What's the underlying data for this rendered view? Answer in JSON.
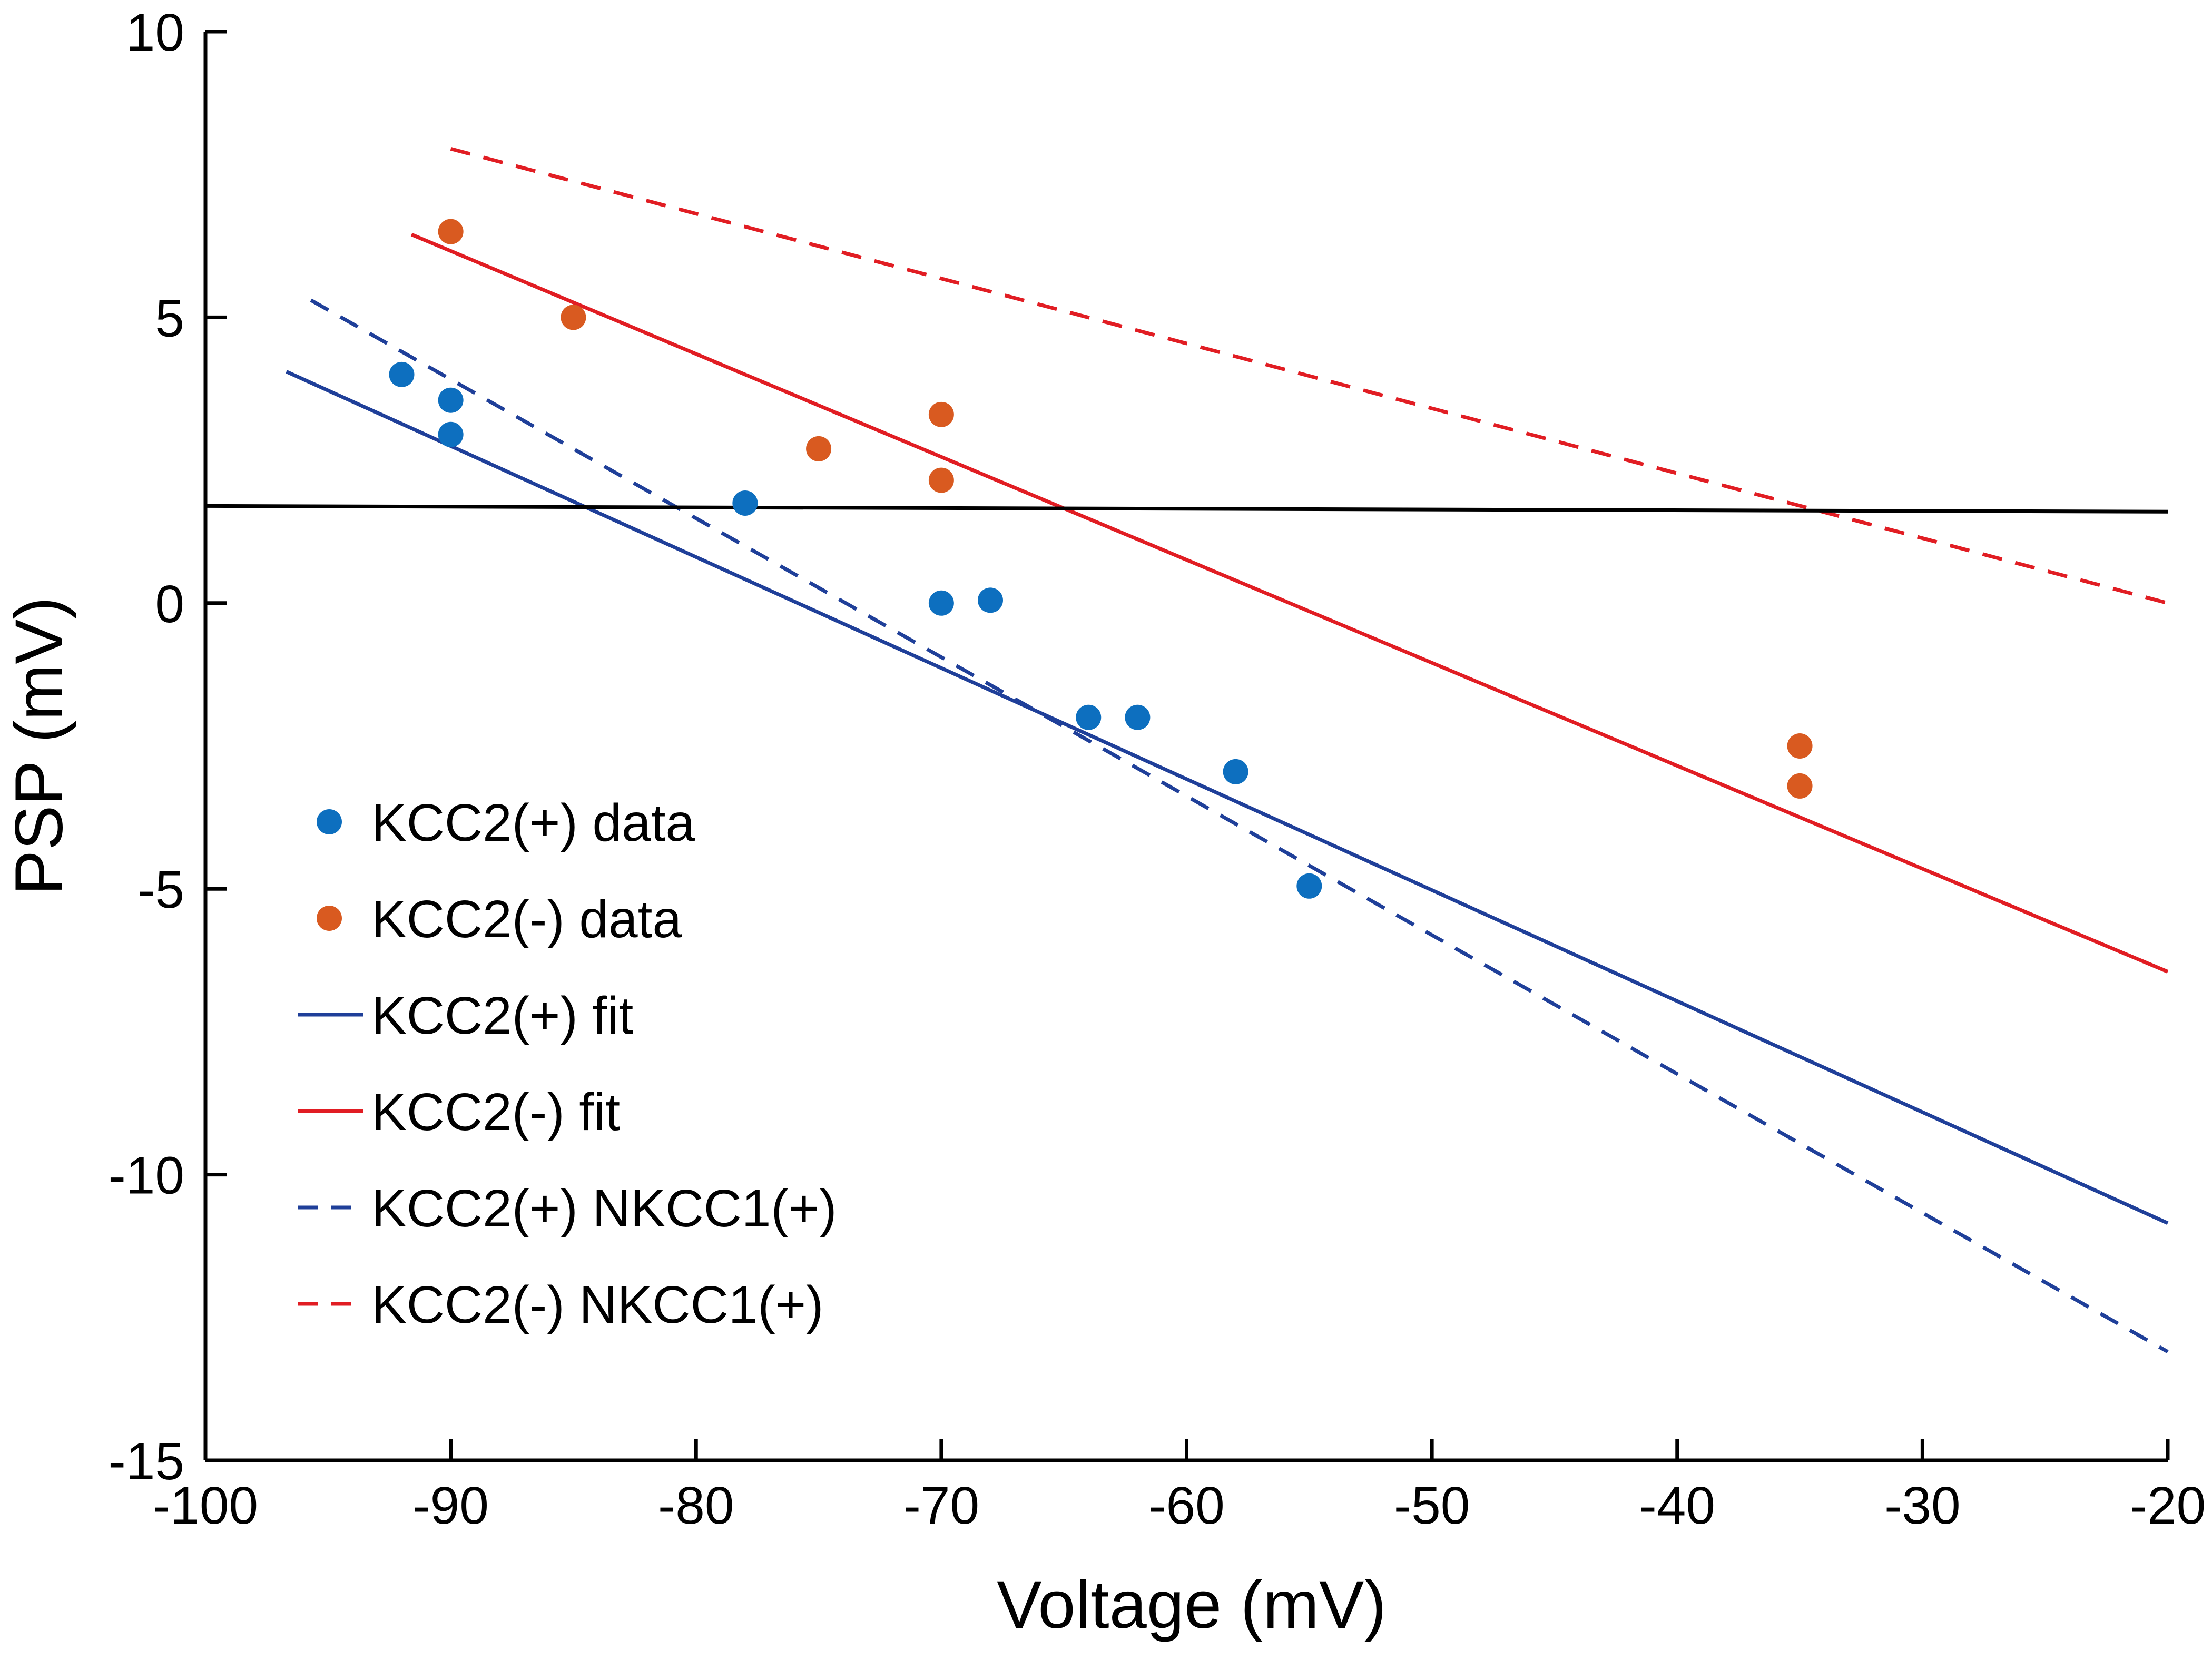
{
  "chart_data": {
    "type": "scatter",
    "title": "",
    "xlabel": "Voltage (mV)",
    "ylabel": "PSP (mV)",
    "xlim": [
      -100,
      -20
    ],
    "ylim": [
      -15,
      10
    ],
    "xticks": [
      -100,
      -90,
      -80,
      -70,
      -60,
      -50,
      -40,
      -30,
      -20
    ],
    "yticks": [
      -15,
      -10,
      -5,
      0,
      5,
      10
    ],
    "xtick_labels": [
      "-100",
      "-90",
      "-80",
      "-70",
      "-60",
      "-50",
      "-40",
      "-30",
      "-20"
    ],
    "ytick_labels": [
      "-15",
      "-10",
      "-5",
      "0",
      "5",
      "10"
    ],
    "grid": false,
    "legend_position": "left",
    "colors": {
      "kcc2_pos": "#0d6fbf",
      "kcc2_neg": "#d95a20",
      "fit_pos": "#1f3f99",
      "fit_neg": "#e11d23",
      "reference": "#000000"
    },
    "series": [
      {
        "name": "KCC2(+) data",
        "kind": "points",
        "color_key": "kcc2_pos",
        "points": [
          [
            -92,
            4
          ],
          [
            -90,
            3.55
          ],
          [
            -90,
            2.95
          ],
          [
            -78,
            1.75
          ],
          [
            -70,
            0
          ],
          [
            -68,
            0.05
          ],
          [
            -64,
            -2
          ],
          [
            -62,
            -2
          ],
          [
            -58,
            -2.95
          ],
          [
            -55,
            -4.95
          ]
        ]
      },
      {
        "name": "KCC2(-) data",
        "kind": "points",
        "color_key": "kcc2_neg",
        "points": [
          [
            -90,
            6.5
          ],
          [
            -85,
            5
          ],
          [
            -75,
            2.7
          ],
          [
            -70,
            3.3
          ],
          [
            -70,
            2.15
          ],
          [
            -35,
            -2.5
          ],
          [
            -35,
            -3.2
          ]
        ]
      },
      {
        "name": "KCC2(+) fit",
        "kind": "line",
        "dash": false,
        "color_key": "fit_pos",
        "points": [
          [
            -96.7,
            4.05
          ],
          [
            -20,
            -10.85
          ]
        ]
      },
      {
        "name": "KCC2(-) fit",
        "kind": "line",
        "dash": false,
        "color_key": "fit_neg",
        "points": [
          [
            -91.6,
            6.45
          ],
          [
            -20,
            -6.45
          ]
        ]
      },
      {
        "name": "KCC2(+) NKCC1(+)",
        "kind": "line",
        "dash": true,
        "color_key": "fit_pos",
        "points": [
          [
            -95.7,
            5.3
          ],
          [
            -20,
            -13.1
          ]
        ]
      },
      {
        "name": "KCC2(-) NKCC1(+)",
        "kind": "line",
        "dash": true,
        "color_key": "fit_neg",
        "points": [
          [
            -90,
            7.95
          ],
          [
            -20,
            0
          ]
        ]
      },
      {
        "kind": "line",
        "dash": false,
        "color_key": "reference",
        "points": [
          [
            -100,
            1.7
          ],
          [
            -20,
            1.6
          ]
        ]
      }
    ]
  }
}
